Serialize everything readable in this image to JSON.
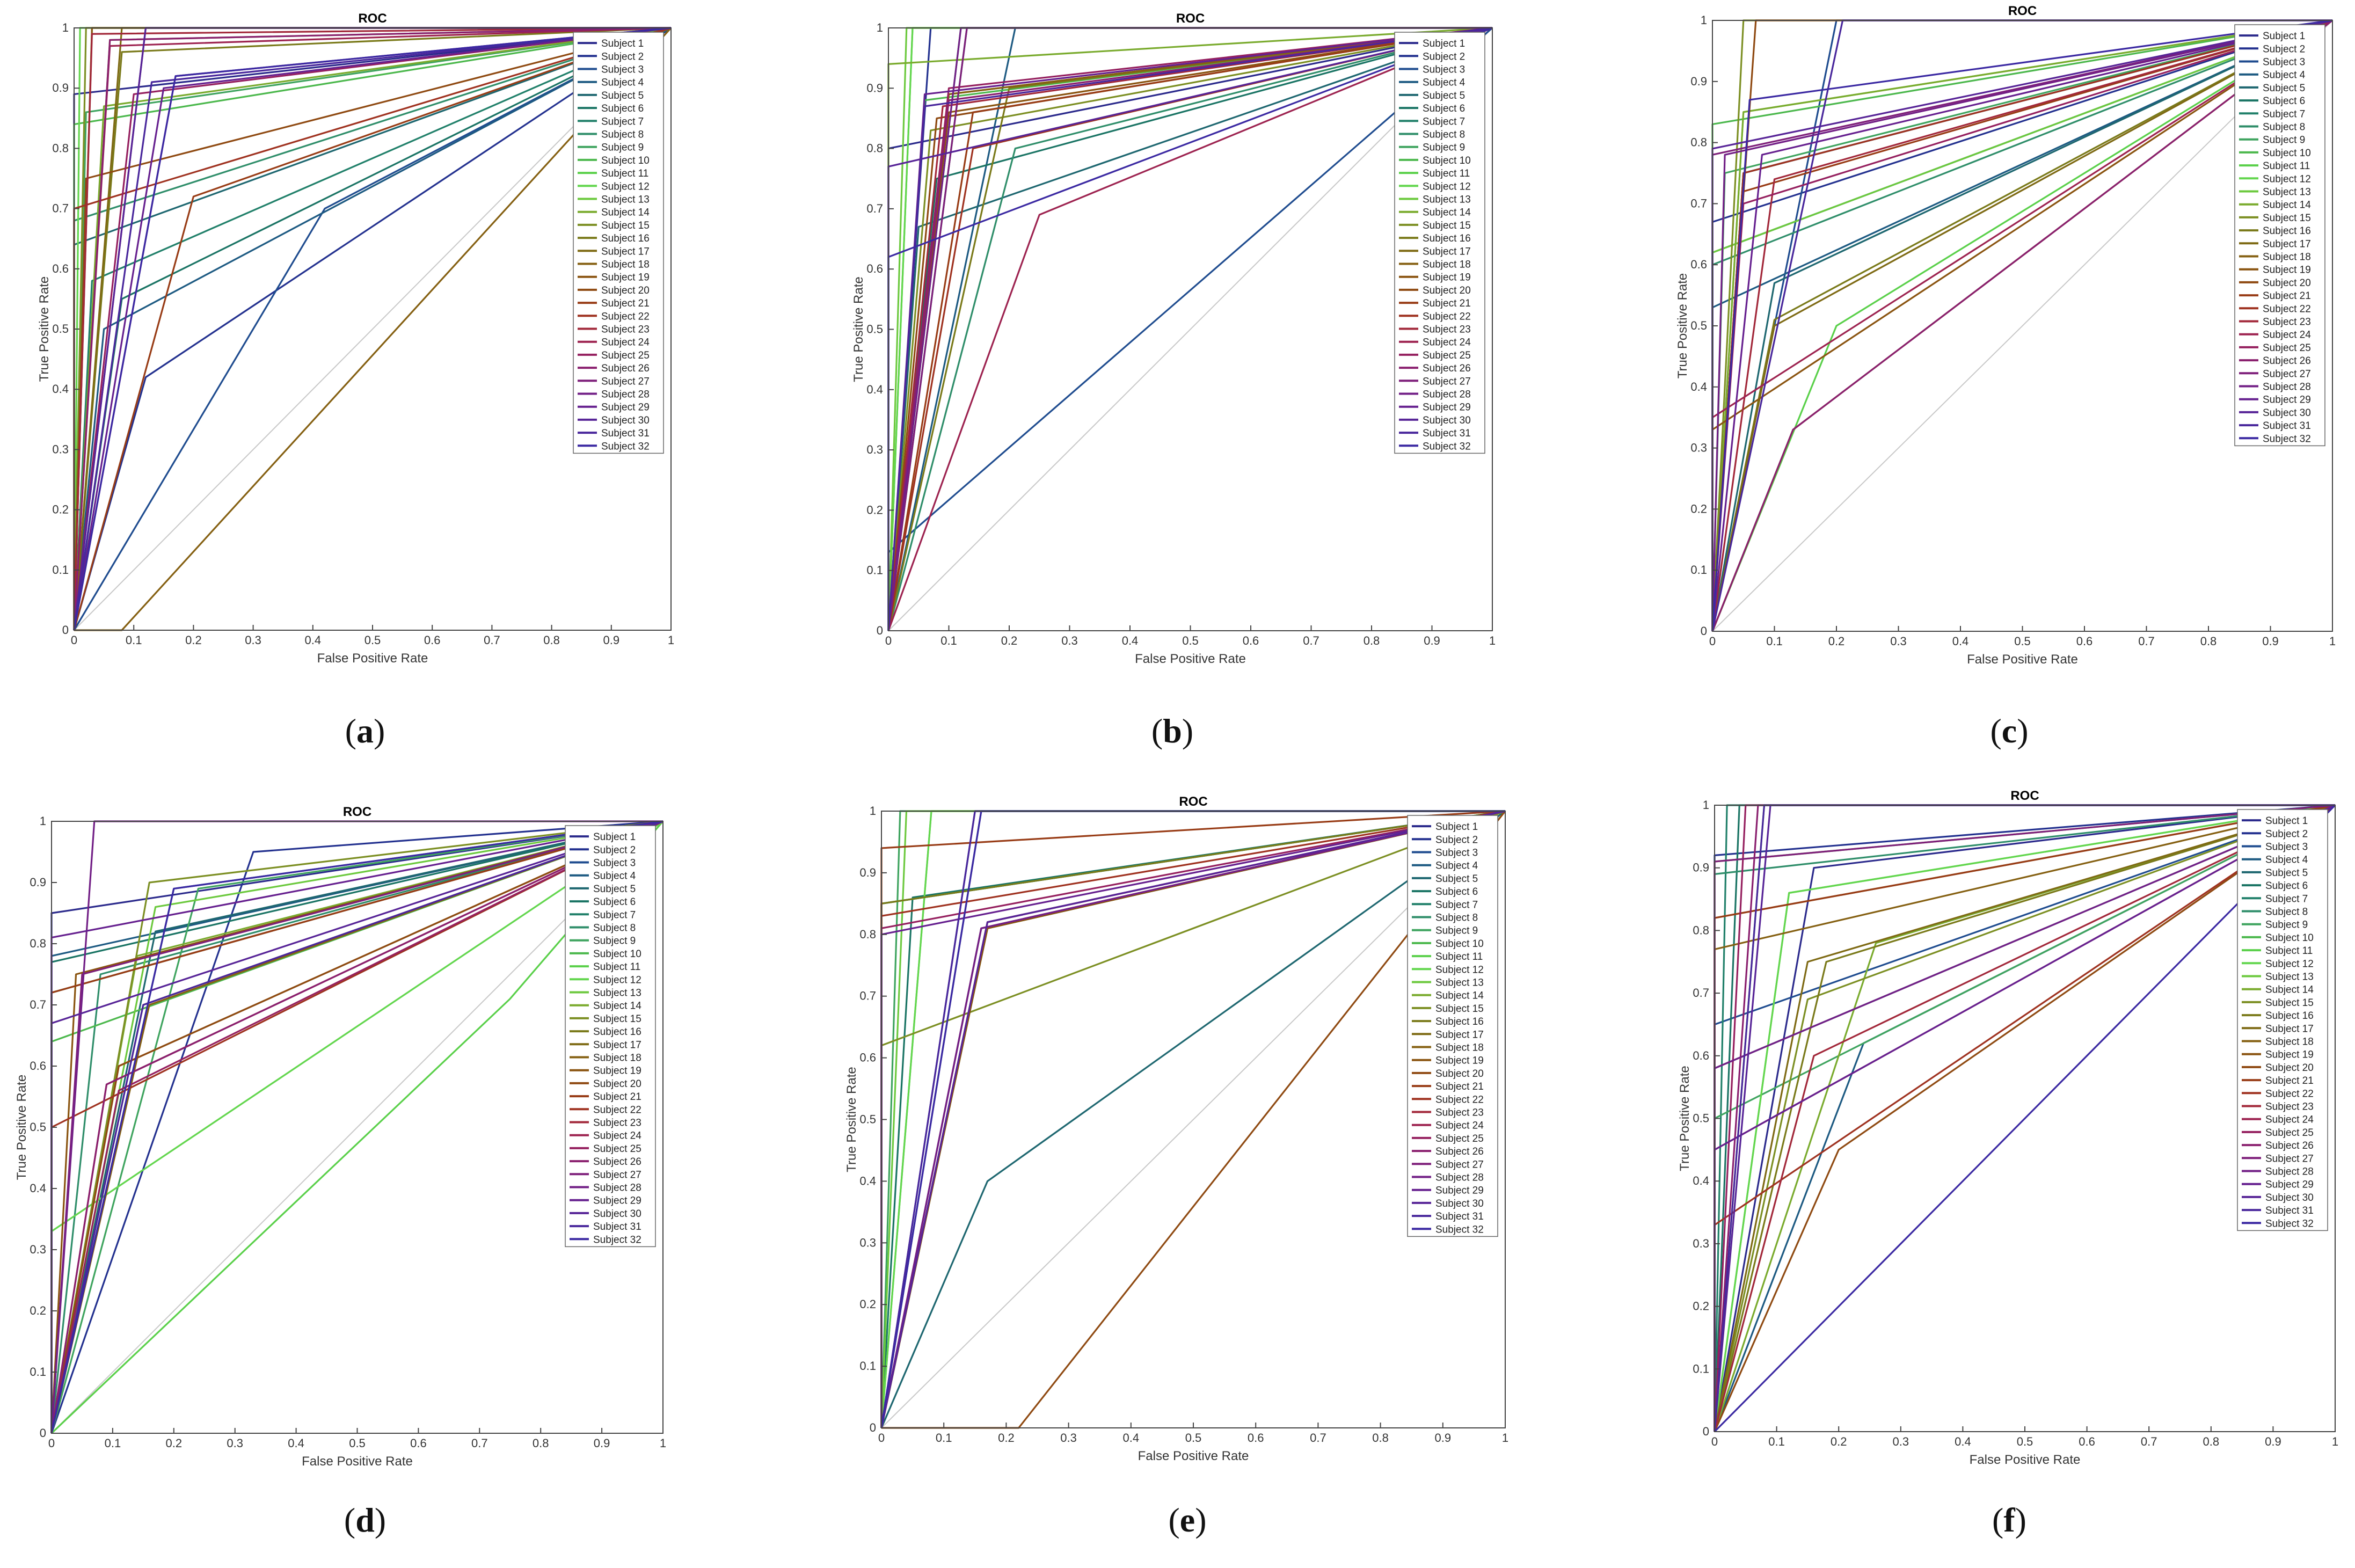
{
  "figure": {
    "captions": [
      "a",
      "b",
      "c",
      "d",
      "e",
      "f"
    ]
  },
  "chart_data": [
    {
      "panel": "a",
      "type": "line",
      "title": "ROC",
      "xlabel": "False Positive Rate",
      "ylabel": "True Positive Rate",
      "xlim": [
        0,
        1
      ],
      "ylim": [
        0,
        1
      ],
      "xticks": [
        "0",
        "0.1",
        "0.2",
        "0.3",
        "0.4",
        "0.5",
        "0.6",
        "0.7",
        "0.8",
        "0.9",
        "1"
      ],
      "yticks": [
        "0",
        "0.1",
        "0.2",
        "0.3",
        "0.4",
        "0.5",
        "0.6",
        "0.7",
        "0.8",
        "0.9",
        "1"
      ],
      "legend": [
        "Subject 1",
        "Subject 2",
        "Subject 3",
        "Subject 4",
        "Subject 5",
        "Subject 6",
        "Subject 7",
        "Subject 8",
        "Subject 9",
        "Subject 10",
        "Subject 11",
        "Subject 12",
        "Subject 13",
        "Subject 14",
        "Subject 15",
        "Subject 16",
        "Subject 17",
        "Subject 18",
        "Subject 19",
        "Subject 20",
        "Subject 21",
        "Subject 22",
        "Subject 23",
        "Subject 24",
        "Subject 25",
        "Subject 26",
        "Subject 27",
        "Subject 28",
        "Subject 29",
        "Subject 30",
        "Subject 31",
        "Subject 32"
      ],
      "legend_position": "top-right",
      "operating_points": [
        [
          0,
          0.89
        ],
        [
          0.12,
          0.42
        ],
        [
          0.42,
          0.7
        ],
        [
          0.05,
          0.5
        ],
        [
          0,
          0.64
        ],
        [
          0.08,
          0.55
        ],
        [
          0.03,
          0.58
        ],
        [
          0,
          0.68
        ],
        [
          0.02,
          0.86
        ],
        [
          0,
          0.84
        ],
        [
          0.03,
          1
        ],
        [
          0.01,
          1
        ],
        [
          0.06,
          0.98
        ],
        [
          0.05,
          0.87
        ],
        [
          0.02,
          1
        ],
        [
          0.08,
          0.96
        ],
        [
          0.08,
          1
        ],
        [
          0.08,
          0
        ],
        [
          0.03,
          1
        ],
        [
          0.02,
          0.75
        ],
        [
          0.2,
          0.72
        ],
        [
          0,
          0.7
        ],
        [
          0.03,
          0.99
        ],
        [
          0.06,
          0.97
        ],
        [
          0.1,
          0.89
        ],
        [
          0.06,
          0.98
        ],
        [
          0.12,
          1
        ],
        [
          0.17,
          0.92
        ],
        [
          0.15,
          0.9
        ],
        [
          0.12,
          1
        ],
        [
          0.13,
          0.91
        ],
        [
          0.17,
          0.92
        ]
      ]
    },
    {
      "panel": "b",
      "type": "line",
      "title": "ROC",
      "xlabel": "False Positive Rate",
      "ylabel": "True Positive Rate",
      "xlim": [
        0,
        1
      ],
      "ylim": [
        0,
        1
      ],
      "xticks": [
        "0",
        "0.1",
        "0.2",
        "0.3",
        "0.4",
        "0.5",
        "0.6",
        "0.7",
        "0.8",
        "0.9",
        "1"
      ],
      "yticks": [
        "0",
        "0.1",
        "0.2",
        "0.3",
        "0.4",
        "0.5",
        "0.6",
        "0.7",
        "0.8",
        "0.9",
        "1"
      ],
      "legend": [
        "Subject 1",
        "Subject 2",
        "Subject 3",
        "Subject 4",
        "Subject 5",
        "Subject 6",
        "Subject 7",
        "Subject 8",
        "Subject 9",
        "Subject 10",
        "Subject 11",
        "Subject 12",
        "Subject 13",
        "Subject 14",
        "Subject 15",
        "Subject 16",
        "Subject 17",
        "Subject 18",
        "Subject 19",
        "Subject 20",
        "Subject 21",
        "Subject 22",
        "Subject 23",
        "Subject 24",
        "Subject 25",
        "Subject 26",
        "Subject 27",
        "Subject 28",
        "Subject 29",
        "Subject 30",
        "Subject 31",
        "Subject 32"
      ],
      "legend_position": "top-right",
      "operating_points": [
        [
          0,
          0.8
        ],
        [
          0.07,
          1
        ],
        [
          0,
          0.13
        ],
        [
          0.21,
          1
        ],
        [
          0.05,
          0.67
        ],
        [
          0.08,
          0.75
        ],
        [
          0.13,
          1
        ],
        [
          0.21,
          0.8
        ],
        [
          0.12,
          1
        ],
        [
          0.06,
          0.88
        ],
        [
          0.04,
          1
        ],
        [
          0.04,
          1
        ],
        [
          0.03,
          1
        ],
        [
          0,
          0.94
        ],
        [
          0.07,
          0.83
        ],
        [
          0.2,
          0.9
        ],
        [
          0.1,
          0.89
        ],
        [
          0.1,
          0.89
        ],
        [
          0.1,
          0.86
        ],
        [
          0.08,
          0.85
        ],
        [
          0.14,
          0.86
        ],
        [
          0.14,
          0.8
        ],
        [
          0.09,
          0.87
        ],
        [
          0.25,
          0.69
        ],
        [
          0.1,
          0.9
        ],
        [
          0.1,
          0.88
        ],
        [
          0.13,
          1
        ],
        [
          0.12,
          1
        ],
        [
          0.06,
          0.89
        ],
        [
          0,
          0.77
        ],
        [
          0.06,
          0.87
        ],
        [
          0,
          0.62
        ]
      ]
    },
    {
      "panel": "c",
      "type": "line",
      "title": "ROC",
      "xlabel": "False Positive Rate",
      "ylabel": "True Positive Rate",
      "xlim": [
        0,
        1
      ],
      "ylim": [
        0,
        1
      ],
      "xticks": [
        "0",
        "0.1",
        "0.2",
        "0.3",
        "0.4",
        "0.5",
        "0.6",
        "0.7",
        "0.8",
        "0.9",
        "1"
      ],
      "yticks": [
        "0",
        "0.1",
        "0.2",
        "0.3",
        "0.4",
        "0.5",
        "0.6",
        "0.7",
        "0.8",
        "0.9",
        "1"
      ],
      "legend": [
        "Subject 1",
        "Subject 2",
        "Subject 3",
        "Subject 4",
        "Subject 5",
        "Subject 6",
        "Subject 7",
        "Subject 8",
        "Subject 9",
        "Subject 10",
        "Subject 11",
        "Subject 12",
        "Subject 13",
        "Subject 14",
        "Subject 15",
        "Subject 16",
        "Subject 17",
        "Subject 18",
        "Subject 19",
        "Subject 20",
        "Subject 21",
        "Subject 22",
        "Subject 23",
        "Subject 24",
        "Subject 25",
        "Subject 26",
        "Subject 27",
        "Subject 28",
        "Subject 29",
        "Subject 30",
        "Subject 31",
        "Subject 32"
      ],
      "legend_position": "top-right",
      "operating_points": [
        [
          0.05,
          0.75
        ],
        [
          0,
          0.67
        ],
        [
          0.2,
          1
        ],
        [
          0,
          0.53
        ],
        [
          0.1,
          0.57
        ],
        [
          0,
          0.62
        ],
        [
          0.05,
          0.75
        ],
        [
          0,
          0.6
        ],
        [
          0.02,
          0.75
        ],
        [
          0,
          0.83
        ],
        [
          0.2,
          0.5
        ],
        [
          0.05,
          0.85
        ],
        [
          0,
          0.62
        ],
        [
          0.05,
          0.85
        ],
        [
          0.05,
          1
        ],
        [
          0.1,
          0.51
        ],
        [
          0.1,
          0.5
        ],
        [
          0.13,
          0.33
        ],
        [
          0,
          0.33
        ],
        [
          0.07,
          1
        ],
        [
          0.05,
          0.72
        ],
        [
          0.05,
          0.75
        ],
        [
          0.1,
          0.74
        ],
        [
          0,
          0.35
        ],
        [
          0.05,
          0.7
        ],
        [
          0.13,
          0.33
        ],
        [
          0,
          0.78
        ],
        [
          0.02,
          0.78
        ],
        [
          0.08,
          0.78
        ],
        [
          0,
          0.79
        ],
        [
          0.21,
          1
        ],
        [
          0.06,
          0.87
        ]
      ]
    },
    {
      "panel": "d",
      "type": "line",
      "title": "ROC",
      "xlabel": "False Positive Rate",
      "ylabel": "True Positive Rate",
      "xlim": [
        0,
        1
      ],
      "ylim": [
        0,
        1
      ],
      "xticks": [
        "0",
        "0.1",
        "0.2",
        "0.3",
        "0.4",
        "0.5",
        "0.6",
        "0.7",
        "0.8",
        "0.9",
        "1"
      ],
      "yticks": [
        "0",
        "0.1",
        "0.2",
        "0.3",
        "0.4",
        "0.5",
        "0.6",
        "0.7",
        "0.8",
        "0.9",
        "1"
      ],
      "legend": [
        "Subject 1",
        "Subject 2",
        "Subject 3",
        "Subject 4",
        "Subject 5",
        "Subject 6",
        "Subject 7",
        "Subject 8",
        "Subject 9",
        "Subject 10",
        "Subject 11",
        "Subject 12",
        "Subject 13",
        "Subject 14",
        "Subject 15",
        "Subject 16",
        "Subject 17",
        "Subject 18",
        "Subject 19",
        "Subject 20",
        "Subject 21",
        "Subject 22",
        "Subject 23",
        "Subject 24",
        "Subject 25",
        "Subject 26",
        "Subject 27",
        "Subject 28",
        "Subject 29",
        "Subject 30",
        "Subject 31",
        "Subject 32"
      ],
      "legend_position": "top-right",
      "operating_points": [
        [
          0,
          0.85
        ],
        [
          0.33,
          0.95
        ],
        [
          0.2,
          0.89
        ],
        [
          0,
          0.78
        ],
        [
          0.17,
          0.82
        ],
        [
          0,
          0.77
        ],
        [
          0,
          0.72
        ],
        [
          0.08,
          0.75
        ],
        [
          0.24,
          0.89
        ],
        [
          0,
          0.64
        ],
        [
          0.75,
          0.71
        ],
        [
          0,
          0.33
        ],
        [
          0.17,
          0.86
        ],
        [
          0.14,
          0.78
        ],
        [
          0.16,
          0.9
        ],
        [
          0.11,
          0.6
        ],
        [
          0,
          0.72
        ],
        [
          0.16,
          0.7
        ],
        [
          0.04,
          0.75
        ],
        [
          0.11,
          0.6
        ],
        [
          0,
          0.72
        ],
        [
          0,
          0.5
        ],
        [
          0.09,
          0.57
        ],
        [
          0.15,
          0.7
        ],
        [
          0.11,
          0.56
        ],
        [
          0.09,
          0.57
        ],
        [
          0.05,
          0.75
        ],
        [
          0.07,
          1
        ],
        [
          0,
          0.81
        ],
        [
          0,
          0.67
        ],
        [
          0.15,
          0.7
        ],
        [
          0.2,
          0.89
        ]
      ]
    },
    {
      "panel": "e",
      "type": "line",
      "title": "ROC",
      "xlabel": "False Positive Rate",
      "ylabel": "True Positive Rate",
      "xlim": [
        0,
        1
      ],
      "ylim": [
        0,
        1
      ],
      "xticks": [
        "0",
        "0.1",
        "0.2",
        "0.3",
        "0.4",
        "0.5",
        "0.6",
        "0.7",
        "0.8",
        "0.9",
        "1"
      ],
      "yticks": [
        "0",
        "0.1",
        "0.2",
        "0.3",
        "0.4",
        "0.5",
        "0.6",
        "0.7",
        "0.8",
        "0.9",
        "1"
      ],
      "legend": [
        "Subject 1",
        "Subject 2",
        "Subject 3",
        "Subject 4",
        "Subject 5",
        "Subject 6",
        "Subject 7",
        "Subject 8",
        "Subject 9",
        "Subject 10",
        "Subject 11",
        "Subject 12",
        "Subject 13",
        "Subject 14",
        "Subject 15",
        "Subject 16",
        "Subject 17",
        "Subject 18",
        "Subject 19",
        "Subject 20",
        "Subject 21",
        "Subject 22",
        "Subject 23",
        "Subject 24",
        "Subject 25",
        "Subject 26",
        "Subject 27",
        "Subject 28",
        "Subject 29",
        "Subject 30",
        "Subject 31",
        "Subject 32"
      ],
      "legend_position": "top-right",
      "operating_points": [
        [
          0.15,
          1
        ],
        [
          0.16,
          1
        ],
        [
          0.17,
          0.82
        ],
        [
          0,
          0.85
        ],
        [
          0.17,
          0.4
        ],
        [
          0.05,
          0.86
        ],
        [
          0,
          0.85
        ],
        [
          0.17,
          0.81
        ],
        [
          0.03,
          1
        ],
        [
          0,
          0.85
        ],
        [
          0.08,
          1
        ],
        [
          0.08,
          1
        ],
        [
          0.04,
          1
        ],
        [
          0.17,
          0.81
        ],
        [
          0,
          0.62
        ],
        [
          0,
          0.85
        ],
        [
          0.17,
          0.81
        ],
        [
          0.16,
          0.81
        ],
        [
          0.17,
          0.81
        ],
        [
          0.22,
          0
        ],
        [
          0,
          0.94
        ],
        [
          0,
          0.83
        ],
        [
          0.16,
          0.81
        ],
        [
          0.17,
          0.82
        ],
        [
          0,
          0.81
        ],
        [
          0.17,
          0.82
        ],
        [
          0.16,
          0.81
        ],
        [
          0.16,
          0.81
        ],
        [
          0,
          0.8
        ],
        [
          0.17,
          0.82
        ],
        [
          0.15,
          1
        ],
        [
          0.16,
          1
        ]
      ]
    },
    {
      "panel": "f",
      "type": "line",
      "title": "ROC",
      "xlabel": "False Positive Rate",
      "ylabel": "True Positive Rate",
      "xlim": [
        0,
        1
      ],
      "ylim": [
        0,
        1
      ],
      "xticks": [
        "0",
        "0.1",
        "0.2",
        "0.3",
        "0.4",
        "0.5",
        "0.6",
        "0.7",
        "0.8",
        "0.9",
        "1"
      ],
      "yticks": [
        "0",
        "0.1",
        "0.2",
        "0.3",
        "0.4",
        "0.5",
        "0.6",
        "0.7",
        "0.8",
        "0.9",
        "1"
      ],
      "legend": [
        "Subject 1",
        "Subject 2",
        "Subject 3",
        "Subject 4",
        "Subject 5",
        "Subject 6",
        "Subject 7",
        "Subject 8",
        "Subject 9",
        "Subject 10",
        "Subject 11",
        "Subject 12",
        "Subject 13",
        "Subject 14",
        "Subject 15",
        "Subject 16",
        "Subject 17",
        "Subject 18",
        "Subject 19",
        "Subject 20",
        "Subject 21",
        "Subject 22",
        "Subject 23",
        "Subject 24",
        "Subject 25",
        "Subject 26",
        "Subject 27",
        "Subject 28",
        "Subject 29",
        "Subject 30",
        "Subject 31",
        "Subject 32"
      ],
      "legend_position": "top-right",
      "operating_points": [
        [
          0.16,
          0.9
        ],
        [
          0,
          0.92
        ],
        [
          0,
          0.65
        ],
        [
          0.24,
          0.62
        ],
        [
          0,
          0.58
        ],
        [
          0.04,
          1
        ],
        [
          0.02,
          1
        ],
        [
          0,
          0.89
        ],
        [
          0,
          0.5
        ],
        [
          0.08,
          1
        ],
        [
          0.12,
          0.86
        ],
        [
          0.12,
          0.86
        ],
        [
          0,
          0.91
        ],
        [
          0.26,
          0.78
        ],
        [
          0.15,
          0.69
        ],
        [
          0.18,
          0.75
        ],
        [
          0.15,
          0.75
        ],
        [
          0,
          0.77
        ],
        [
          0,
          0.82
        ],
        [
          0.2,
          0.45
        ],
        [
          0,
          0.82
        ],
        [
          0,
          0.33
        ],
        [
          0.16,
          0.6
        ],
        [
          0,
          0.45
        ],
        [
          0.05,
          1
        ],
        [
          0.07,
          1
        ],
        [
          0,
          0.91
        ],
        [
          0,
          0.58
        ],
        [
          0,
          0.45
        ],
        [
          0.09,
          1
        ],
        [
          0.08,
          1
        ],
        [
          0,
          0
        ]
      ]
    }
  ]
}
